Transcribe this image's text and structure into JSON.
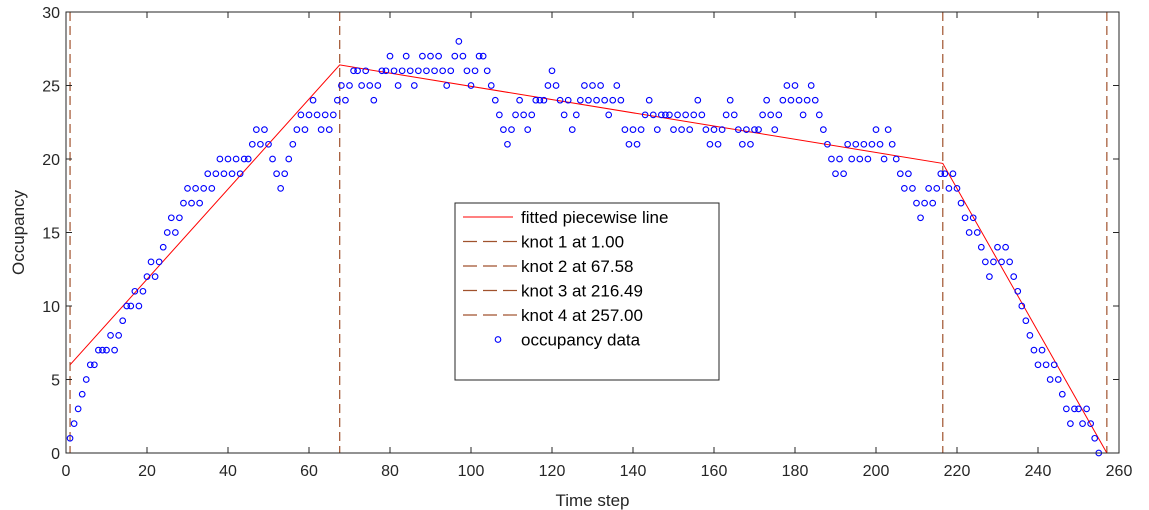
{
  "chart_data": {
    "type": "scatter",
    "title": "",
    "xlabel": "Time step",
    "ylabel": "Occupancy",
    "xlim": [
      0,
      260
    ],
    "ylim": [
      0,
      30
    ],
    "xticks": [
      "0",
      "20",
      "40",
      "60",
      "80",
      "100",
      "120",
      "140",
      "160",
      "180",
      "200",
      "220",
      "240",
      "260"
    ],
    "yticks": [
      "0",
      "5",
      "10",
      "15",
      "20",
      "25",
      "30"
    ],
    "grid": false,
    "legend_position": "center",
    "colors": {
      "fit": "#ff0000",
      "knot": "#a0522d",
      "data": "#0000ff",
      "axis": "#262626"
    },
    "series": [
      {
        "name": "fitted piecewise line",
        "kind": "line",
        "x": [
          1.0,
          67.58,
          216.49,
          257.0
        ],
        "y": [
          6.0,
          26.4,
          19.7,
          0.0
        ]
      },
      {
        "name": "knot 1 at 1.00",
        "kind": "vline",
        "x": 1.0
      },
      {
        "name": "knot 2 at 67.58",
        "kind": "vline",
        "x": 67.58
      },
      {
        "name": "knot 3 at 216.49",
        "kind": "vline",
        "x": 216.49
      },
      {
        "name": "knot 4 at 257.00",
        "kind": "vline",
        "x": 257.0
      },
      {
        "name": "occupancy data",
        "kind": "markers",
        "x_start": 1,
        "y": [
          1,
          2,
          3,
          4,
          5,
          6,
          6,
          7,
          7,
          7,
          8,
          7,
          8,
          9,
          10,
          10,
          11,
          10,
          11,
          12,
          13,
          12,
          13,
          14,
          15,
          16,
          15,
          16,
          17,
          18,
          17,
          18,
          17,
          18,
          19,
          18,
          19,
          20,
          19,
          20,
          19,
          20,
          19,
          20,
          20,
          21,
          22,
          21,
          22,
          21,
          20,
          19,
          18,
          19,
          20,
          21,
          22,
          23,
          22,
          23,
          24,
          23,
          22,
          23,
          22,
          23,
          24,
          25,
          24,
          25,
          26,
          26,
          25,
          26,
          25,
          24,
          25,
          26,
          26,
          27,
          26,
          25,
          26,
          27,
          26,
          25,
          26,
          27,
          26,
          27,
          26,
          27,
          26,
          25,
          26,
          27,
          28,
          27,
          26,
          25,
          26,
          27,
          27,
          26,
          25,
          24,
          23,
          22,
          21,
          22,
          23,
          24,
          23,
          22,
          23,
          24,
          24,
          24,
          25,
          26,
          25,
          24,
          23,
          24,
          22,
          23,
          24,
          25,
          24,
          25,
          24,
          25,
          24,
          23,
          24,
          25,
          24,
          22,
          21,
          22,
          21,
          22,
          23,
          24,
          23,
          22,
          23,
          23,
          23,
          22,
          23,
          22,
          23,
          22,
          23,
          24,
          23,
          22,
          21,
          22,
          21,
          22,
          23,
          24,
          23,
          22,
          21,
          22,
          21,
          22,
          22,
          23,
          24,
          23,
          22,
          23,
          24,
          25,
          24,
          25,
          24,
          23,
          24,
          25,
          24,
          23,
          22,
          21,
          20,
          19,
          20,
          19,
          21,
          20,
          21,
          20,
          21,
          20,
          21,
          22,
          21,
          20,
          22,
          21,
          20,
          19,
          18,
          19,
          18,
          17,
          16,
          17,
          18,
          17,
          18,
          19,
          19,
          18,
          19,
          18,
          17,
          16,
          15,
          16,
          15,
          14,
          13,
          12,
          13,
          14,
          13,
          14,
          13,
          12,
          11,
          10,
          9,
          8,
          7,
          6,
          7,
          6,
          5,
          6,
          5,
          4,
          3,
          2,
          3,
          3,
          2,
          3,
          2,
          1,
          0
        ]
      }
    ]
  }
}
